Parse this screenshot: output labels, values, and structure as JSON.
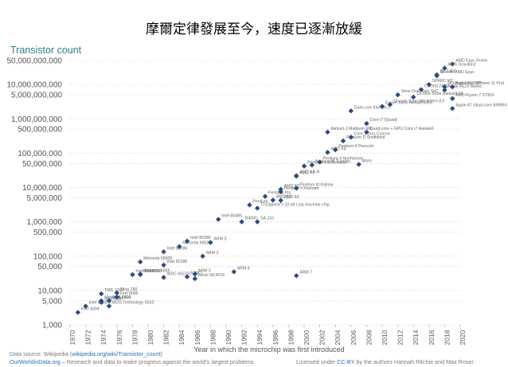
{
  "header": {
    "title": "摩爾定律發展至今，速度已逐漸放緩"
  },
  "chart_data": {
    "type": "scatter",
    "title": "摩爾定律發展至今，速度已逐漸放緩",
    "ylabel": "Transistor count",
    "xlabel": "Year in which the microchip was first introduced",
    "yscale": "log",
    "ylim": [
      1000,
      50000000000
    ],
    "xlim": [
      1970,
      2020
    ],
    "yticks": [
      {
        "value": 50000000000,
        "label": "50,000,000,000"
      },
      {
        "value": 10000000000,
        "label": "10,000,000,000"
      },
      {
        "value": 5000000000,
        "label": "5,000,000,000"
      },
      {
        "value": 1000000000,
        "label": "1,000,000,000"
      },
      {
        "value": 500000000,
        "label": "500,000,000"
      },
      {
        "value": 100000000,
        "label": "100,000,000"
      },
      {
        "value": 50000000,
        "label": "50,000,000"
      },
      {
        "value": 10000000,
        "label": "10,000,000"
      },
      {
        "value": 5000000,
        "label": "5,000,000"
      },
      {
        "value": 1000000,
        "label": "1,000,000"
      },
      {
        "value": 500000,
        "label": "500,000"
      },
      {
        "value": 100000,
        "label": "100,000"
      },
      {
        "value": 50000,
        "label": "50,000"
      },
      {
        "value": 10000,
        "label": "10,000"
      },
      {
        "value": 5000,
        "label": "5,000"
      },
      {
        "value": 1000,
        "label": "1,000"
      }
    ],
    "xticks": [
      "1970",
      "1972",
      "1974",
      "1976",
      "1978",
      "1980",
      "1982",
      "1984",
      "1986",
      "1988",
      "1990",
      "1992",
      "1994",
      "1996",
      "1998",
      "2000",
      "2002",
      "2004",
      "2006",
      "2008",
      "2010",
      "2012",
      "2014",
      "2016",
      "2018",
      "2020"
    ],
    "color": "#2c4a7c",
    "points": [
      {
        "x": 1971,
        "y": 2300,
        "label": "Intel 4004"
      },
      {
        "x": 1972,
        "y": 3500,
        "label": "Intel 8008"
      },
      {
        "x": 1974,
        "y": 4500,
        "label": "Intel 8080"
      },
      {
        "x": 1974,
        "y": 5000,
        "label": "Motorola 6800"
      },
      {
        "x": 1975,
        "y": 3510,
        "label": "MOS Technology 6502"
      },
      {
        "x": 1975,
        "y": 5000,
        "label": "RCA 1802"
      },
      {
        "x": 1976,
        "y": 8500,
        "label": "Zilog Z80"
      },
      {
        "x": 1976,
        "y": 6500,
        "label": "Intel 8085"
      },
      {
        "x": 1974,
        "y": 8000,
        "label": "TMS 1000"
      },
      {
        "x": 1978,
        "y": 29000,
        "label": "Intel 8086"
      },
      {
        "x": 1979,
        "y": 29000,
        "label": "Intel 8088"
      },
      {
        "x": 1979,
        "y": 68000,
        "label": "Motorola 68000"
      },
      {
        "x": 1979,
        "y": 30000,
        "label": "Motorola 6809"
      },
      {
        "x": 1982,
        "y": 134000,
        "label": "Intel 80286"
      },
      {
        "x": 1982,
        "y": 55000,
        "label": "Intel 80186"
      },
      {
        "x": 1982,
        "y": 24000,
        "label": "WDC 65C02"
      },
      {
        "x": 1984,
        "y": 190000,
        "label": "Motorola 68020"
      },
      {
        "x": 1985,
        "y": 275000,
        "label": "Intel 80386"
      },
      {
        "x": 1985,
        "y": 25000,
        "label": "ARM 1"
      },
      {
        "x": 1986,
        "y": 30000,
        "label": "ARM 2"
      },
      {
        "x": 1986,
        "y": 22000,
        "label": "Novix NC4016"
      },
      {
        "x": 1987,
        "y": 100000,
        "label": "ARM 2"
      },
      {
        "x": 1988,
        "y": 250000,
        "label": "ARM 3"
      },
      {
        "x": 1989,
        "y": 1180235,
        "label": "Intel 80486"
      },
      {
        "x": 1991,
        "y": 35000,
        "label": "ARM 6"
      },
      {
        "x": 1992,
        "y": 1000000,
        "label": "R4000"
      },
      {
        "x": 1993,
        "y": 3100000,
        "label": "Pentium"
      },
      {
        "x": 1994,
        "y": 2500000,
        "label": "TI Explorer's 32-bit Lisp machine chip"
      },
      {
        "x": 1994,
        "y": 1000000,
        "label": "SA-110"
      },
      {
        "x": 1995,
        "y": 5500000,
        "label": "Pentium Pro"
      },
      {
        "x": 1996,
        "y": 4300000,
        "label": "AMD K5"
      },
      {
        "x": 1997,
        "y": 7500000,
        "label": "Pentium II Klamath"
      },
      {
        "x": 1997,
        "y": 8800000,
        "label": "AMD K6"
      },
      {
        "x": 1999,
        "y": 9500000,
        "label": "Pentium III Katmai"
      },
      {
        "x": 1999,
        "y": 22000000,
        "label": "AMD K6-III"
      },
      {
        "x": 1999,
        "y": 21300000,
        "label": "AMD K7"
      },
      {
        "x": 2000,
        "y": 42000000,
        "label": "Pentium 4 Willamette"
      },
      {
        "x": 2001,
        "y": 45000000,
        "label": "Pentium III Tualatin"
      },
      {
        "x": 2002,
        "y": 55000000,
        "label": "Pentium 4 Northwood"
      },
      {
        "x": 2003,
        "y": 105900000,
        "label": "AMD K8"
      },
      {
        "x": 2003,
        "y": 410000000,
        "label": "Itanium 2 Madison 6M"
      },
      {
        "x": 2004,
        "y": 125000000,
        "label": "Pentium 4 Prescott"
      },
      {
        "x": 2005,
        "y": 228000000,
        "label": "Pentium D Smithfield"
      },
      {
        "x": 2006,
        "y": 291000000,
        "label": "Core 2 Duo Conroe"
      },
      {
        "x": 2006,
        "y": 1700000000,
        "label": "Dual-core Itanium 2"
      },
      {
        "x": 2007,
        "y": 47000000,
        "label": "Atom"
      },
      {
        "x": 2008,
        "y": 731000000,
        "label": "Core i7 (Quad)"
      },
      {
        "x": 2010,
        "y": 2300000000,
        "label": "8-core Xeon Nehalem-EX"
      },
      {
        "x": 2011,
        "y": 2600000000,
        "label": "10-core Xeon Westmere-EX"
      },
      {
        "x": 2012,
        "y": 5000000000,
        "label": "Xbox One main SoC"
      },
      {
        "x": 2014,
        "y": 4300000000,
        "label": "18-core Xeon Haswell-E5"
      },
      {
        "x": 2015,
        "y": 7100000000,
        "label": "Centriq 2400"
      },
      {
        "x": 2016,
        "y": 10000000000,
        "label": "SPARC M7"
      },
      {
        "x": 2017,
        "y": 18000000000,
        "label": "32-core AMD Epyc"
      },
      {
        "x": 2017,
        "y": 19200000000,
        "label": "GC2 IPU"
      },
      {
        "x": 2019,
        "y": 39540000000,
        "label": "AMD Epyc Rome"
      },
      {
        "x": 2018,
        "y": 6900000000,
        "label": "Apple A12X Bionic"
      },
      {
        "x": 2018,
        "y": 8500000000,
        "label": "HiSilicon Kirin 980"
      },
      {
        "x": 2019,
        "y": 8500000000,
        "label": "Apple A13 (iPhone 11 Pro)"
      },
      {
        "x": 2019,
        "y": 3900000000,
        "label": "AMD Ryzen 7 3700X"
      },
      {
        "x": 2018,
        "y": 30000000000,
        "label": "AWS Graviton2"
      },
      {
        "x": 2019,
        "y": 2000000000,
        "label": "Apple A7 (dual-core ARM64 'mobile SoC')"
      },
      {
        "x": 1997,
        "y": 4200000,
        "label": "AMD K6"
      },
      {
        "x": 2008,
        "y": 410000000,
        "label": "Quad-core + GPU Core i7 Haswell"
      },
      {
        "x": 1999,
        "y": 27000,
        "label": "ARM 7"
      }
    ]
  },
  "footer": {
    "source_prefix": "Data source: Wikipedia (",
    "source_link": "wikipedia.org/wiki/Transistor_count",
    "source_suffix": ")",
    "owid_link": "OurWorldinData.org",
    "owid_text": " – Research and data to make progress against the world's largest problems.",
    "license_prefix": "Licensed under ",
    "license_link": "CC-BY",
    "license_suffix": " by the authors Hannah Ritchie and Max Roser."
  }
}
